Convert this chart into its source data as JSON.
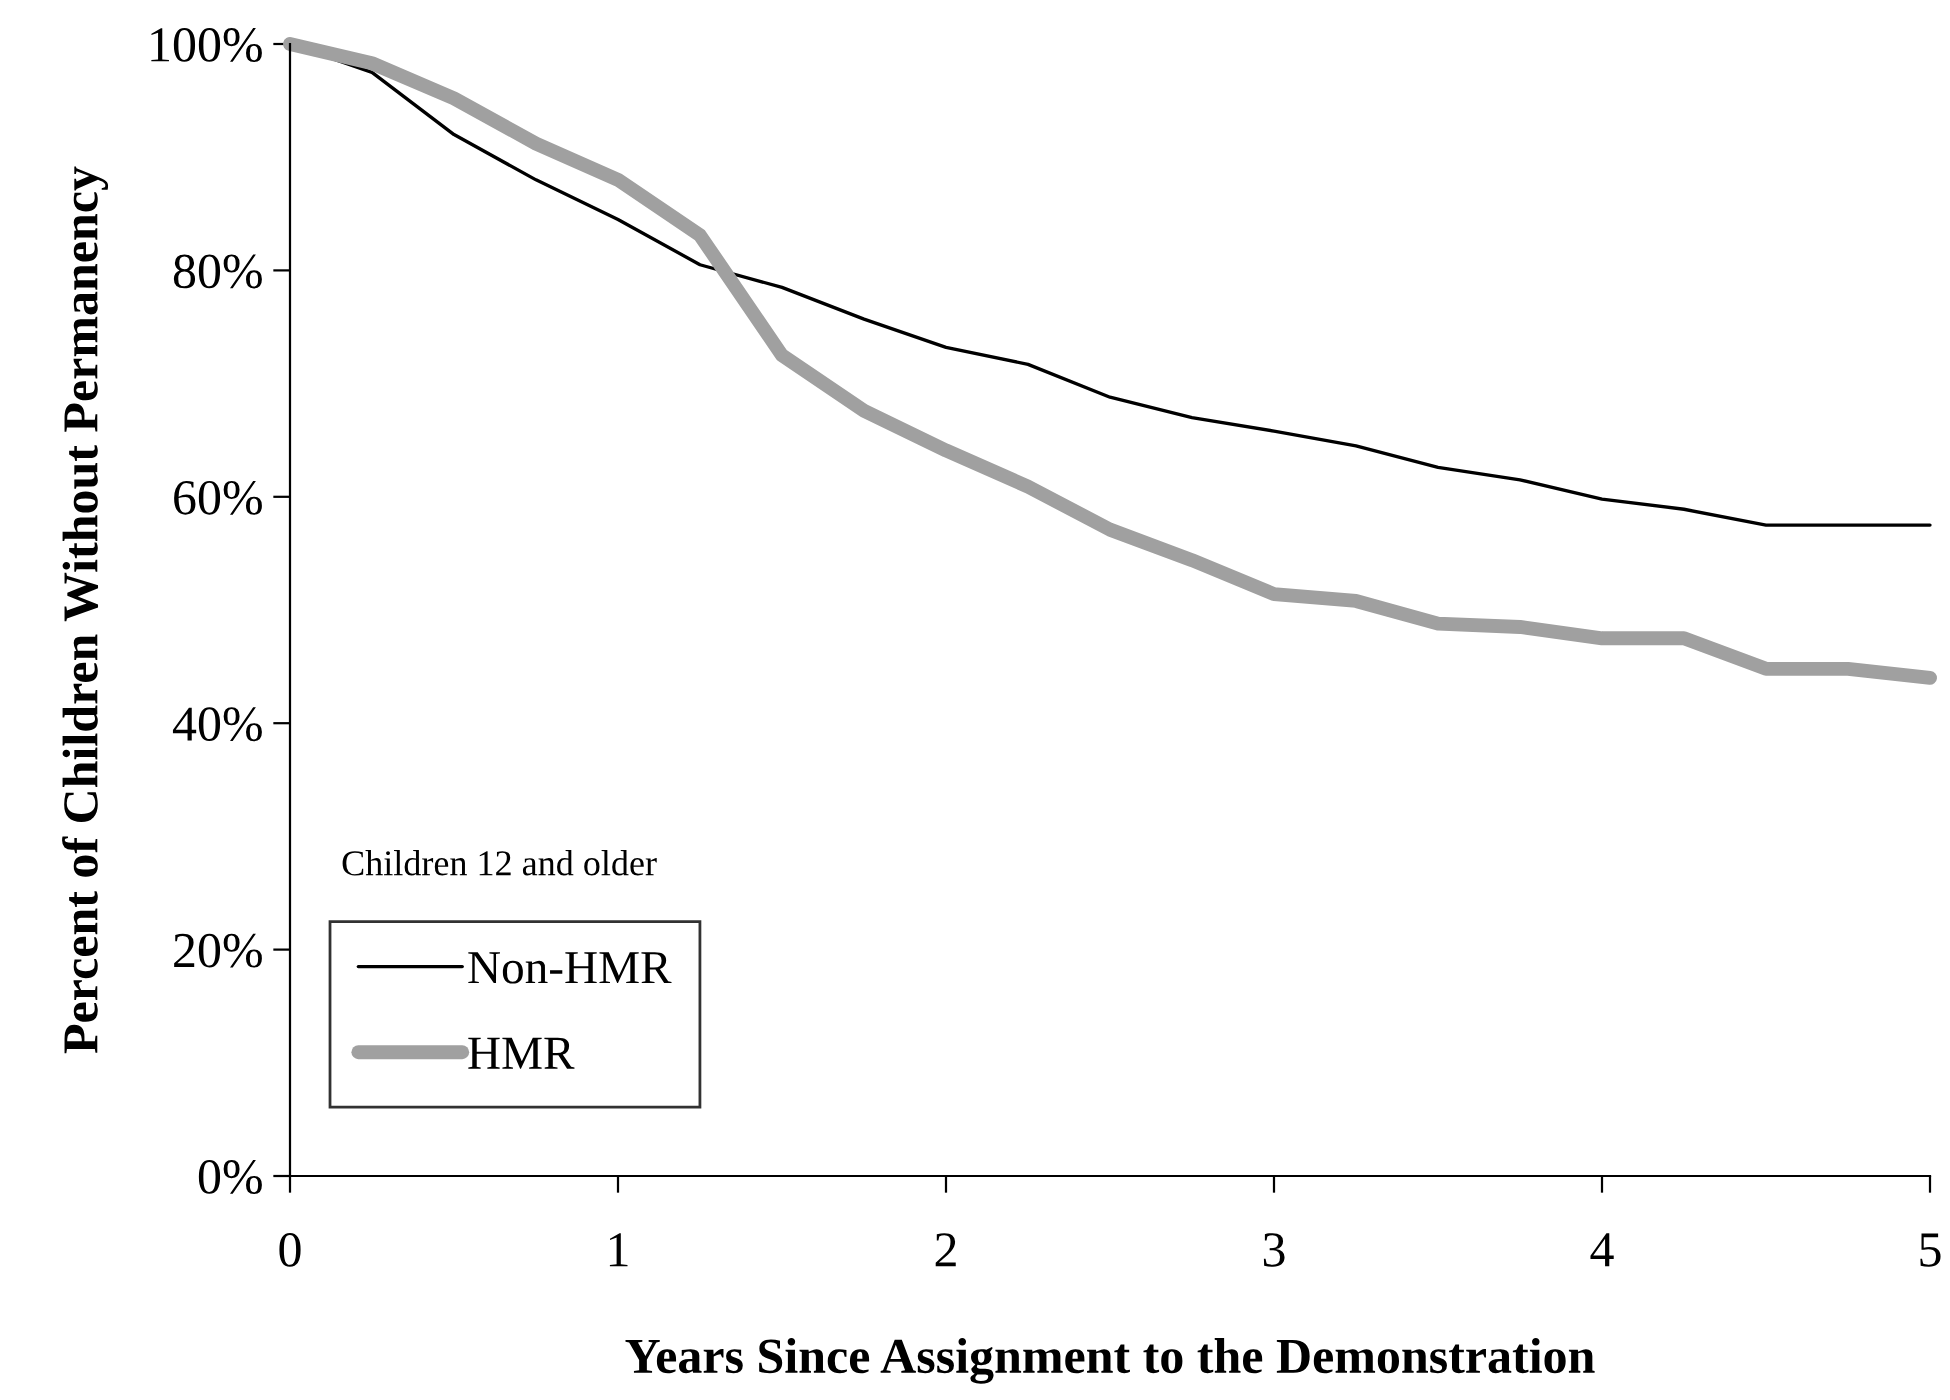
{
  "chart_data": {
    "type": "line",
    "xlabel": "Years Since Assignment to the Demonstration",
    "ylabel": "Percent of Children Without Permanency",
    "x": [
      0,
      0.25,
      0.5,
      0.75,
      1,
      1.25,
      1.5,
      1.75,
      2,
      2.25,
      2.5,
      2.75,
      3,
      3.25,
      3.5,
      3.75,
      4,
      4.25,
      4.5,
      4.75,
      5
    ],
    "series": [
      {
        "name": "Non-HMR",
        "color": "#000000",
        "values": [
          100,
          97.5,
          92,
          88,
          84.5,
          80.5,
          78.5,
          75.7,
          73.2,
          71.7,
          68.8,
          67,
          65.8,
          64.5,
          62.6,
          61.5,
          59.8,
          58.9,
          57.5,
          57.5,
          57.5
        ]
      },
      {
        "name": "HMR",
        "color": "#a0a0a0",
        "values": [
          100,
          98.3,
          95.2,
          91.2,
          88,
          83.1,
          72.5,
          67.6,
          64.1,
          60.9,
          57.1,
          54.4,
          51.4,
          50.8,
          48.8,
          48.5,
          47.5,
          47.5,
          44.8,
          44.8,
          44
        ]
      }
    ],
    "legend_title": "Children 12 and older",
    "legend": "bottom left",
    "xlim": [
      0,
      5
    ],
    "xticks": [
      0,
      1,
      2,
      3,
      4,
      5
    ],
    "ylim": [
      0,
      100
    ],
    "yticks": [
      {
        "value": 0,
        "label": "0%"
      },
      {
        "value": 20,
        "label": "20%"
      },
      {
        "value": 40,
        "label": "40%"
      },
      {
        "value": 60,
        "label": "60%"
      },
      {
        "value": 80,
        "label": "80%"
      },
      {
        "value": 100,
        "label": "100%"
      }
    ],
    "grid": false,
    "marker": "none",
    "line_style": "solid"
  }
}
